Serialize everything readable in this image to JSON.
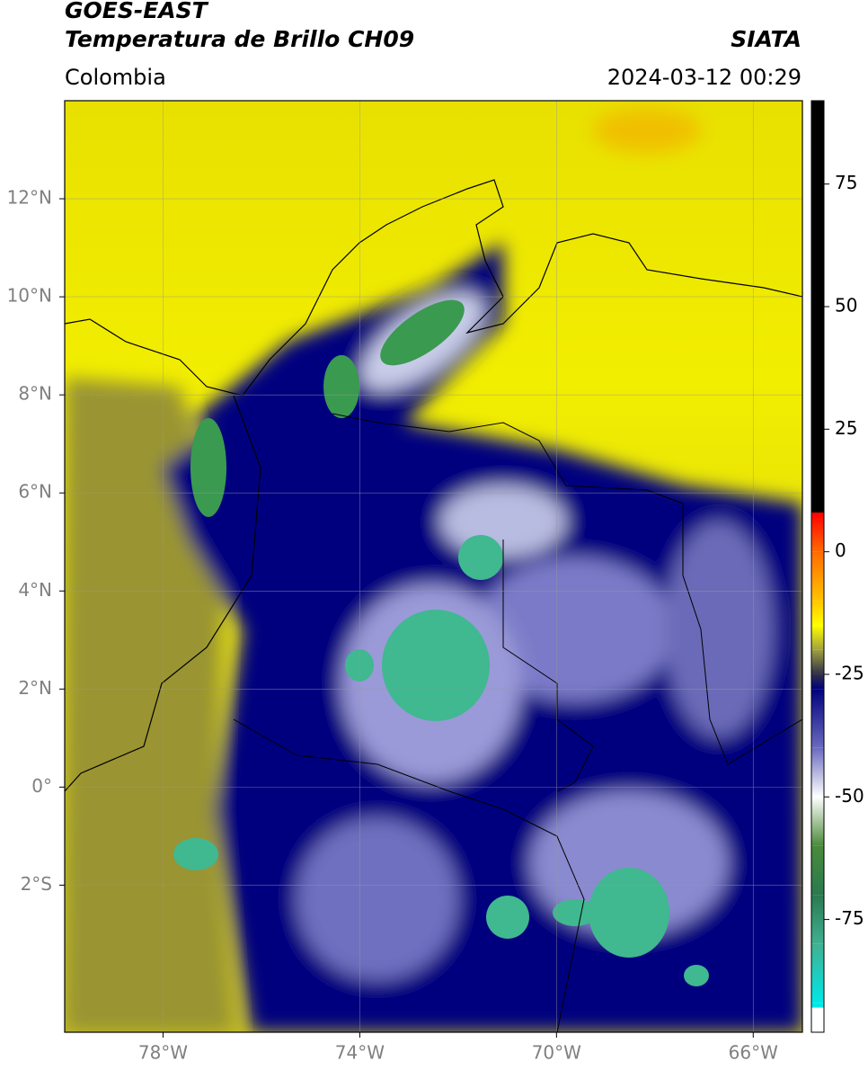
{
  "header": {
    "source": "GOES-EAST",
    "product": "Temperatura de Brillo CH09",
    "agency": "SIATA",
    "region": "Colombia",
    "datetime": "2024-03-12 00:29"
  },
  "map": {
    "xlim": [
      -80,
      -65
    ],
    "ylim": [
      -5,
      14
    ],
    "xticks": [
      {
        "value": -78,
        "label": "78°W"
      },
      {
        "value": -74,
        "label": "74°W"
      },
      {
        "value": -70,
        "label": "70°W"
      },
      {
        "value": -66,
        "label": "66°W"
      }
    ],
    "yticks": [
      {
        "value": 12,
        "label": "12°N"
      },
      {
        "value": 10,
        "label": "10°N"
      },
      {
        "value": 8,
        "label": "8°N"
      },
      {
        "value": 6,
        "label": "6°N"
      },
      {
        "value": 4,
        "label": "4°N"
      },
      {
        "value": 2,
        "label": "2°N"
      },
      {
        "value": 0,
        "label": "0°"
      },
      {
        "value": -2,
        "label": "2°S"
      }
    ],
    "grid": true
  },
  "colorbar": {
    "lim": [
      -98,
      92
    ],
    "ticks": [
      75,
      50,
      25,
      0,
      -25,
      -50,
      -75
    ],
    "stops": [
      {
        "value": 92,
        "color": "#000000"
      },
      {
        "value": 8,
        "color": "#000000"
      },
      {
        "value": 8,
        "color": "#ff0000"
      },
      {
        "value": 0,
        "color": "#ff6a00"
      },
      {
        "value": -10,
        "color": "#ffc400"
      },
      {
        "value": -15,
        "color": "#ffff00"
      },
      {
        "value": -20,
        "color": "#a0a040"
      },
      {
        "value": -25,
        "color": "#303048"
      },
      {
        "value": -28,
        "color": "#00007f"
      },
      {
        "value": -40,
        "color": "#6a6ac0"
      },
      {
        "value": -50,
        "color": "#ffffff"
      },
      {
        "value": -60,
        "color": "#4a8a3a"
      },
      {
        "value": -70,
        "color": "#2a7a50"
      },
      {
        "value": -80,
        "color": "#40b090"
      },
      {
        "value": -92,
        "color": "#00e8e8"
      },
      {
        "value": -93,
        "color": "#00e8e8"
      },
      {
        "value": -93,
        "color": "#ffffff"
      },
      {
        "value": -98,
        "color": "#ffffff"
      }
    ]
  }
}
